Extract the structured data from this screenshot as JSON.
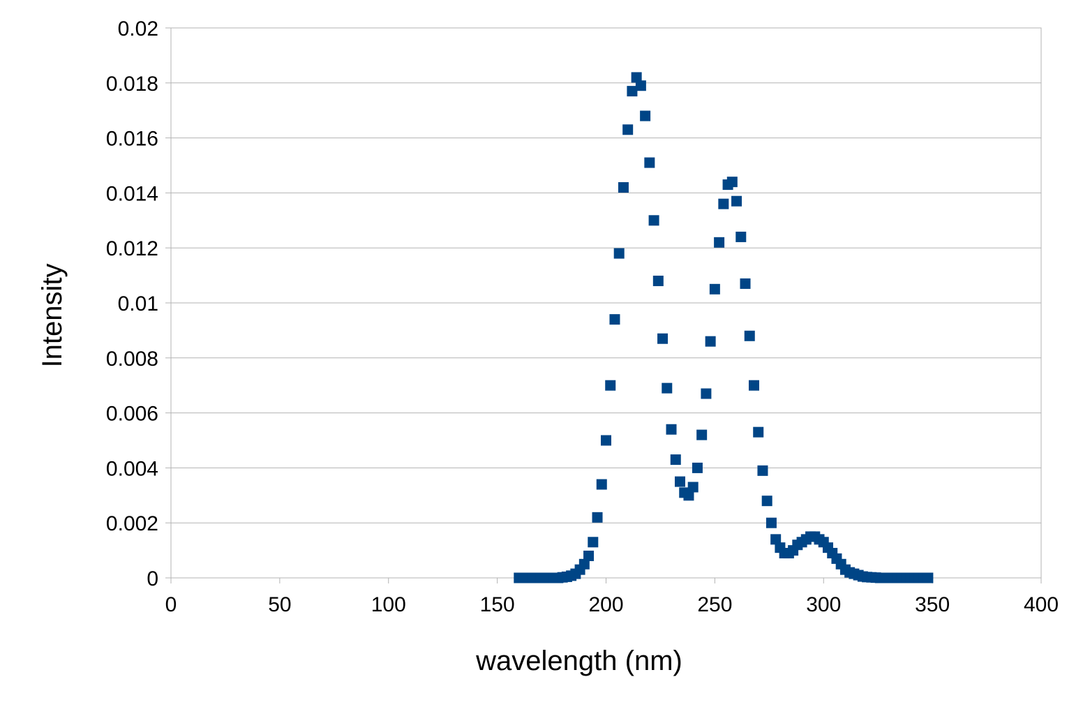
{
  "chart_data": {
    "type": "scatter",
    "xlabel": "wavelength (nm)",
    "ylabel": "Intensity",
    "xlim": [
      0,
      400
    ],
    "ylim": [
      0,
      0.02
    ],
    "x_ticks": [
      "0",
      "50",
      "100",
      "150",
      "200",
      "250",
      "300",
      "350",
      "400"
    ],
    "y_ticks": [
      "0",
      "0.002",
      "0.004",
      "0.006",
      "0.008",
      "0.01",
      "0.012",
      "0.014",
      "0.016",
      "0.018",
      "0.02"
    ],
    "grid": "horizontal",
    "legend": "none",
    "marker": "square",
    "color": "#004586",
    "series": [
      {
        "x": [
          160,
          162,
          164,
          166,
          168,
          170,
          172,
          174,
          176,
          178,
          180,
          182,
          184,
          186,
          188,
          190,
          192,
          194,
          196,
          198,
          200,
          202,
          204,
          206,
          208,
          210,
          212,
          214,
          216,
          218,
          220,
          222,
          224,
          226,
          228,
          230,
          232,
          234,
          236,
          238,
          240,
          242,
          244,
          246,
          248,
          250,
          252,
          254,
          256,
          258,
          260,
          262,
          264,
          266,
          268,
          270,
          272,
          274,
          276,
          278,
          280,
          282,
          284,
          286,
          288,
          290,
          292,
          294,
          296,
          298,
          300,
          302,
          304,
          306,
          308,
          310,
          312,
          314,
          316,
          318,
          320,
          322,
          324,
          326,
          328,
          330,
          332,
          334,
          336,
          338,
          340,
          342,
          344,
          346,
          348
        ],
        "y": [
          0,
          0,
          0,
          0,
          0,
          0,
          0,
          0,
          0,
          0,
          2e-05,
          4e-05,
          8e-05,
          0.00015,
          0.0003,
          0.0005,
          0.0008,
          0.0013,
          0.0022,
          0.0034,
          0.005,
          0.007,
          0.0094,
          0.0118,
          0.0142,
          0.0163,
          0.0177,
          0.0182,
          0.0179,
          0.0168,
          0.0151,
          0.013,
          0.0108,
          0.0087,
          0.0069,
          0.0054,
          0.0043,
          0.0035,
          0.0031,
          0.003,
          0.0033,
          0.004,
          0.0052,
          0.0067,
          0.0086,
          0.0105,
          0.0122,
          0.0136,
          0.0143,
          0.0144,
          0.0137,
          0.0124,
          0.0107,
          0.0088,
          0.007,
          0.0053,
          0.0039,
          0.0028,
          0.002,
          0.0014,
          0.0011,
          0.0009,
          0.0009,
          0.001,
          0.0012,
          0.0013,
          0.0014,
          0.0015,
          0.0015,
          0.0014,
          0.0013,
          0.0011,
          0.0009,
          0.0007,
          0.0005,
          0.0003,
          0.0002,
          0.00015,
          0.0001,
          5e-05,
          3e-05,
          2e-05,
          1e-05,
          0,
          0,
          0,
          0,
          0,
          0,
          0,
          0,
          0,
          0,
          0,
          0
        ]
      }
    ]
  }
}
